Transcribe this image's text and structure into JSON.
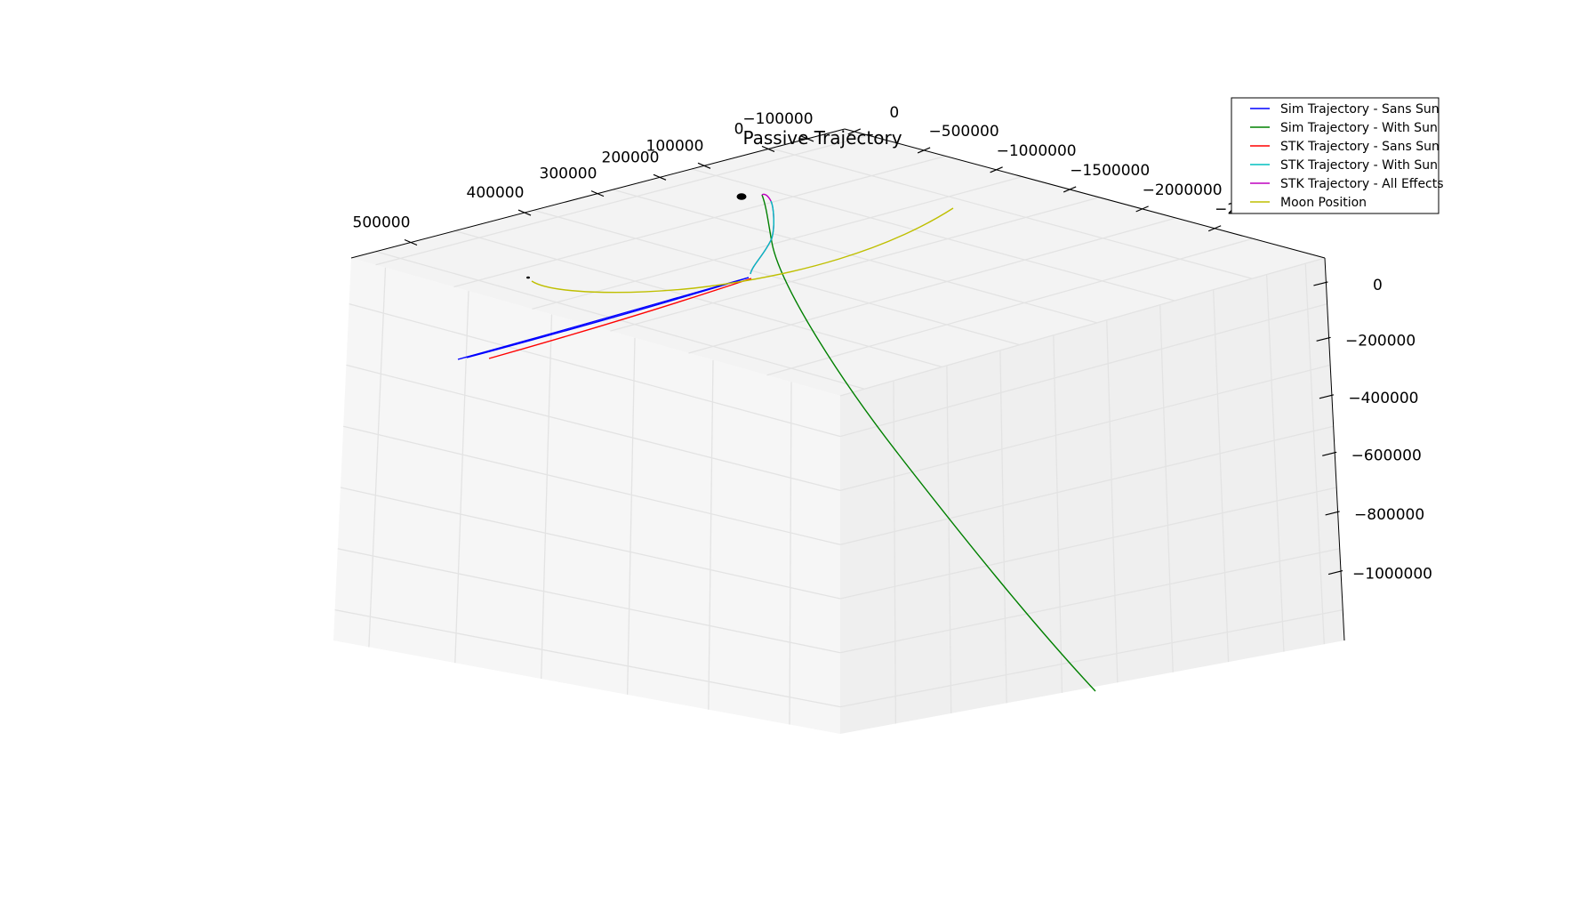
{
  "chart_data": {
    "type": "line",
    "projection": "3d",
    "title": "Passive Trajectory",
    "xlabel": "",
    "ylabel": "",
    "zlabel": "",
    "grid": true,
    "legend_position": "top-right",
    "axes": {
      "x": {
        "ticks": [
          500000,
          400000,
          300000,
          200000,
          100000,
          0,
          -100000
        ],
        "tick_labels": [
          "500000",
          "400000",
          "300000",
          "200000",
          "100000",
          "0",
          "−100000"
        ]
      },
      "y": {
        "ticks": [
          0,
          -500000,
          -1000000,
          -1500000,
          -2000000,
          -2500000
        ],
        "tick_labels": [
          "0",
          "−500000",
          "−1000000",
          "−1500000",
          "−2000000",
          "−2500000"
        ]
      },
      "z": {
        "ticks": [
          0,
          -200000,
          -400000,
          -600000,
          -800000,
          -1000000
        ],
        "tick_labels": [
          "0",
          "−200000",
          "−400000",
          "−600000",
          "−800000",
          "−1000000"
        ]
      }
    },
    "series": [
      {
        "name": "Sim Trajectory - Sans Sun",
        "color": "#0000ff"
      },
      {
        "name": "Sim Trajectory - With Sun",
        "color": "#008000"
      },
      {
        "name": "STK Trajectory - Sans Sun",
        "color": "#ff0000"
      },
      {
        "name": "STK Trajectory - With Sun",
        "color": "#00bfbf"
      },
      {
        "name": "STK Trajectory - All Effects",
        "color": "#bf00bf"
      },
      {
        "name": "Moon Position",
        "color": "#bfbf00"
      }
    ]
  }
}
